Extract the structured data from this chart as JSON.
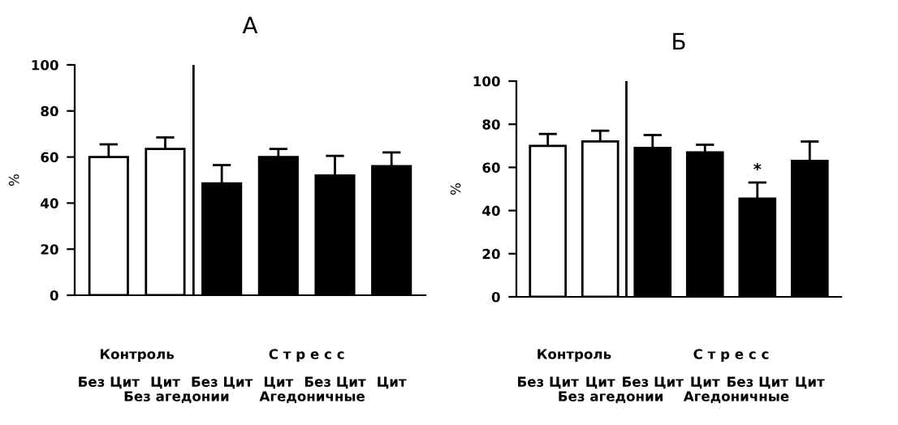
{
  "chart_data": [
    {
      "type": "bar",
      "title": "А",
      "ylabel": "%",
      "categories": [
        "Без Цит",
        "Цит",
        "Без Цит",
        "Цит",
        "Без Цит",
        "Цит"
      ],
      "series": [
        {
          "colors": [
            "#ffffff",
            "#ffffff",
            "#000000",
            "#000000",
            "#000000",
            "#000000"
          ],
          "values": [
            60,
            63.5,
            48.5,
            60,
            52,
            56
          ],
          "errors": [
            5.5,
            5,
            8,
            3.5,
            8.5,
            6
          ]
        }
      ],
      "ylim": [
        0,
        100
      ],
      "yticks": [
        0,
        20,
        40,
        60,
        80,
        100
      ],
      "annotations": [
        "Контроль",
        "С т р е с с",
        "Без агедонии",
        "Агедоничные"
      ],
      "grid": false,
      "legend": false
    },
    {
      "type": "bar",
      "title": "Б",
      "ylabel": "%",
      "categories": [
        "Без Цит",
        "Цит",
        "Без Цит",
        "Цит",
        "Без Цит",
        "Цит"
      ],
      "series": [
        {
          "colors": [
            "#ffffff",
            "#ffffff",
            "#000000",
            "#000000",
            "#000000",
            "#000000"
          ],
          "values": [
            70,
            72,
            69,
            67,
            45.5,
            63
          ],
          "errors": [
            5.5,
            5,
            6,
            3.5,
            7.5,
            9
          ],
          "value_labels": [
            null,
            null,
            null,
            null,
            "*",
            null
          ]
        }
      ],
      "ylim": [
        0,
        100
      ],
      "yticks": [
        0,
        20,
        40,
        60,
        80,
        100
      ],
      "annotations": [
        "Контроль",
        "С т р е с с",
        "Без агедонии",
        "Агедоничные"
      ],
      "grid": false,
      "legend": false
    }
  ]
}
